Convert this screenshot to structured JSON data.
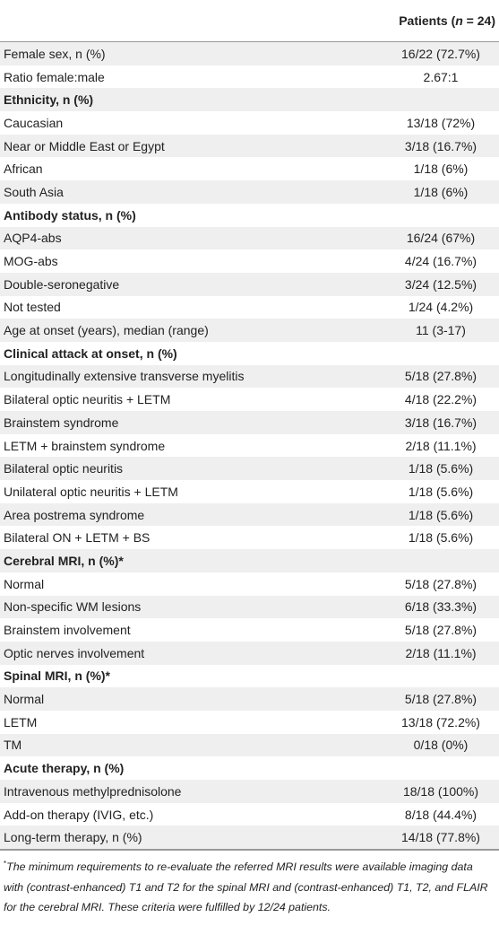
{
  "table": {
    "header": [
      "Patients (",
      "n",
      " = 24)"
    ],
    "rows": [
      {
        "label": "Female sex, n (%)",
        "value": "16/22 (72.7%)"
      },
      {
        "label": "Ratio female:male",
        "value": "2.67:1"
      },
      {
        "label": "Ethnicity, n (%)"
      },
      {
        "label": "Caucasian",
        "value": "13/18 (72%)"
      },
      {
        "label": "Near or Middle East or Egypt",
        "value": "3/18 (16.7%)"
      },
      {
        "label": "African",
        "value": "1/18 (6%)"
      },
      {
        "label": "South Asia",
        "value": "1/18 (6%)"
      },
      {
        "label": "Antibody status, n (%)"
      },
      {
        "label": "AQP4-abs",
        "value": "16/24 (67%)"
      },
      {
        "label": "MOG-abs",
        "value": "4/24 (16.7%)"
      },
      {
        "label": "Double-seronegative",
        "value": "3/24 (12.5%)"
      },
      {
        "label": "Not tested",
        "value": "1/24 (4.2%)"
      },
      {
        "label": "Age at onset (years), median (range)",
        "value": "11 (3-17)"
      },
      {
        "label": "Clinical attack at onset, n (%)"
      },
      {
        "label": "Longitudinally extensive transverse myelitis",
        "value": "5/18 (27.8%)"
      },
      {
        "label": "Bilateral optic neuritis + LETM",
        "value": "4/18 (22.2%)"
      },
      {
        "label": "Brainstem syndrome",
        "value": "3/18 (16.7%)"
      },
      {
        "label": "LETM + brainstem syndrome",
        "value": "2/18 (11.1%)"
      },
      {
        "label": "Bilateral optic neuritis",
        "value": "1/18 (5.6%)"
      },
      {
        "label": "Unilateral optic neuritis + LETM",
        "value": "1/18 (5.6%)"
      },
      {
        "label": "Area postrema syndrome",
        "value": "1/18 (5.6%)"
      },
      {
        "label": "Bilateral ON + LETM + BS",
        "value": "1/18 (5.6%)"
      },
      {
        "label": "Cerebral MRI, n (%)*"
      },
      {
        "label": "Normal",
        "value": "5/18 (27.8%)"
      },
      {
        "label": "Non-specific WM lesions",
        "value": "6/18 (33.3%)"
      },
      {
        "label": "Brainstem involvement",
        "value": "5/18 (27.8%)"
      },
      {
        "label": "Optic nerves involvement",
        "value": "2/18 (11.1%)"
      },
      {
        "label": "Spinal MRI, n (%)*"
      },
      {
        "label": "Normal",
        "value": "5/18 (27.8%)"
      },
      {
        "label": "LETM",
        "value": "13/18 (72.2%)"
      },
      {
        "label": "TM",
        "value": "0/18 (0%)"
      },
      {
        "label": "Acute therapy, n (%)"
      },
      {
        "label": "Intravenous methylprednisolone",
        "value": "18/18 (100%)"
      },
      {
        "label": "Add-on therapy (IVIG, etc.)",
        "value": "8/18 (44.4%)"
      },
      {
        "label": "Long-term therapy, n (%)",
        "value": "14/18 (77.8%)"
      }
    ],
    "footnote": {
      "mark": "*",
      "text": "The minimum requirements to re-evaluate the referred MRI results were available imaging data with (contrast-enhanced) T1 and T2 for the spinal MRI and (contrast-enhanced) T1, T2, and FLAIR for the cerebral MRI. These criteria were fulfilled by 12/24 patients."
    }
  }
}
